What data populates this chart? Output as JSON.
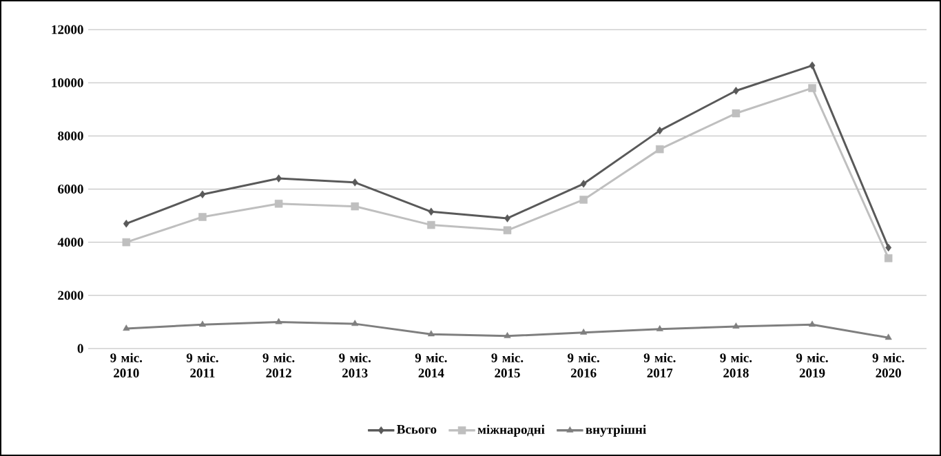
{
  "chart_data": {
    "type": "line",
    "categories": [
      "9 міс. 2010",
      "9 міс. 2011",
      "9 міс. 2012",
      "9 міс. 2013",
      "9 міс. 2014",
      "9 міс. 2015",
      "9 міс. 2016",
      "9 міс. 2017",
      "9 міс. 2018",
      "9 міс. 2019",
      "9 міс. 2020"
    ],
    "series": [
      {
        "name": "Всього",
        "color": "#595959",
        "marker": "diamond",
        "values": [
          4700,
          5800,
          6400,
          6250,
          5150,
          4900,
          6200,
          8200,
          9700,
          10650,
          3800
        ]
      },
      {
        "name": "міжнародні",
        "color": "#bfbfbf",
        "marker": "square",
        "values": [
          4000,
          4950,
          5450,
          5350,
          4650,
          4450,
          5600,
          7500,
          8850,
          9800,
          3400
        ]
      },
      {
        "name": "внутрішні",
        "color": "#7f7f7f",
        "marker": "triangle",
        "values": [
          750,
          900,
          1000,
          930,
          540,
          470,
          600,
          730,
          830,
          900,
          410
        ]
      }
    ],
    "ylim": [
      0,
      12000
    ],
    "yticks": [
      0,
      2000,
      4000,
      6000,
      8000,
      10000,
      12000
    ],
    "grid": "y",
    "legend": "bottom"
  }
}
